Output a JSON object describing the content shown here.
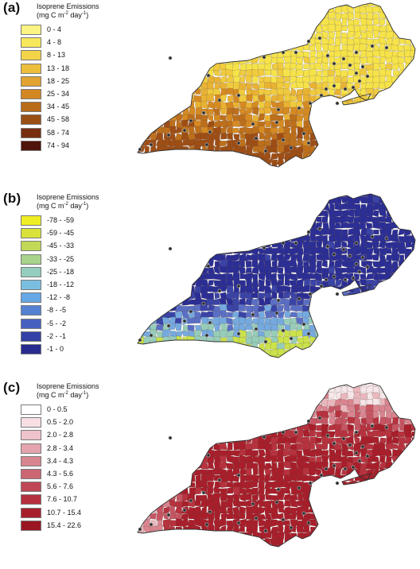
{
  "panels": [
    {
      "label": "(a)",
      "title": "Isoprene Emissions",
      "units_prefix": "(mg C m",
      "units_exp1": "-2",
      "units_mid": " day",
      "units_exp2": "-1",
      "units_suffix": ")",
      "map_colors": [
        "#f6e34a",
        "#f0cb3e",
        "#e9b233",
        "#d58a22",
        "#bd6f1b",
        "#9e4e15"
      ],
      "legend": [
        {
          "range": "0 - 4",
          "color": "#fbf383"
        },
        {
          "range": "4 - 8",
          "color": "#f8e75b"
        },
        {
          "range": "8 - 13",
          "color": "#f3d348"
        },
        {
          "range": "13 - 18",
          "color": "#ecbe3c"
        },
        {
          "range": "18 - 25",
          "color": "#e2a331"
        },
        {
          "range": "25 - 34",
          "color": "#d28723"
        },
        {
          "range": "34 - 45",
          "color": "#b86c1a"
        },
        {
          "range": "45 - 58",
          "color": "#9a4f15"
        },
        {
          "range": "58 - 74",
          "color": "#772e0f"
        },
        {
          "range": "74 - 94",
          "color": "#4f140a"
        }
      ]
    },
    {
      "label": "(b)",
      "title": "Isoprene Emissions",
      "units_prefix": "(mg C m",
      "units_exp1": "-2",
      "units_mid": " day",
      "units_exp2": "-1",
      "units_suffix": ")",
      "map_colors": [
        "#2b2e95",
        "#3a43a6",
        "#5a6fc4",
        "#75a9df",
        "#96cdb9",
        "#cbe24a"
      ],
      "legend": [
        {
          "range": "-78 - -59",
          "color": "#eeee22"
        },
        {
          "range": "-59 - -45",
          "color": "#d8e23a"
        },
        {
          "range": "-45 - -33",
          "color": "#c2d957"
        },
        {
          "range": "-33 - -25",
          "color": "#a8d38d"
        },
        {
          "range": "-25 - -18",
          "color": "#94cdbf"
        },
        {
          "range": "-18 - -12",
          "color": "#7bbfe0"
        },
        {
          "range": "-12 - -8",
          "color": "#66a7e5"
        },
        {
          "range": "-8 - -5",
          "color": "#5481d2"
        },
        {
          "range": "-5 - -2",
          "color": "#4660bf"
        },
        {
          "range": "-2 - -1",
          "color": "#3441a6"
        },
        {
          "range": "-1 - 0",
          "color": "#282c8f"
        }
      ]
    },
    {
      "label": "(c)",
      "title": "Isoprene Emissions",
      "units_prefix": "(mg C m",
      "units_exp1": "-2",
      "units_mid": " day",
      "units_exp2": "-1",
      "units_suffix": ")",
      "map_colors": [
        "#f7e7ea",
        "#eab6bd",
        "#d9848f",
        "#c65563",
        "#b7323f",
        "#a81e2b"
      ],
      "legend": [
        {
          "range": "0 - 0.5",
          "color": "#ffffff"
        },
        {
          "range": "0.5 - 2.0",
          "color": "#f7dfe3"
        },
        {
          "range": "2.0 - 2.8",
          "color": "#eec3c9"
        },
        {
          "range": "2.8 - 3.4",
          "color": "#e3a4ad"
        },
        {
          "range": "3.4 - 4.3",
          "color": "#d7868f"
        },
        {
          "range": "4.3 - 5.6",
          "color": "#cb6673"
        },
        {
          "range": "5.6 - 7.6",
          "color": "#bf4856"
        },
        {
          "range": "7.6 - 10.7",
          "color": "#b5303e"
        },
        {
          "range": "10.7 - 15.4",
          "color": "#a81f2c"
        },
        {
          "range": "15.4 - 22.6",
          "color": "#9a1622"
        }
      ]
    }
  ]
}
